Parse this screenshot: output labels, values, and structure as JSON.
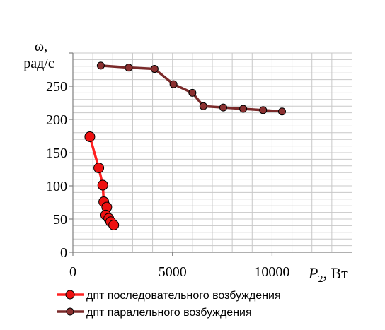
{
  "chart_data": {
    "type": "line",
    "title": "",
    "ylabel_line1": "ω,",
    "ylabel_line2": "рад/с",
    "xlabel_italic": "P",
    "xlabel_sub": "2",
    "xlabel_rest": ", Вт",
    "xlim": [
      0,
      14000
    ],
    "ylim": [
      0,
      300
    ],
    "x_major_ticks": [
      0,
      5000,
      10000
    ],
    "x_tick_labels": [
      "0",
      "5000",
      "10000"
    ],
    "y_major_ticks": [
      0,
      50,
      100,
      150,
      200,
      250
    ],
    "y_tick_labels": [
      "0",
      "50",
      "100",
      "150",
      "200",
      "250"
    ],
    "grid": true,
    "legend_position": "bottom",
    "series": [
      {
        "name": "дпт последовательного возбуждения",
        "color": "#ff2020",
        "marker_color": "#ee1111",
        "points": [
          {
            "x": 850,
            "y": 174
          },
          {
            "x": 1300,
            "y": 127
          },
          {
            "x": 1500,
            "y": 101
          },
          {
            "x": 1550,
            "y": 76
          },
          {
            "x": 1700,
            "y": 68
          },
          {
            "x": 1650,
            "y": 56
          },
          {
            "x": 1800,
            "y": 51
          },
          {
            "x": 1900,
            "y": 46
          },
          {
            "x": 2050,
            "y": 41
          }
        ]
      },
      {
        "name": "дпт паралельного возбуждения",
        "color": "#7a2a2a",
        "marker_color": "#8b3030",
        "points": [
          {
            "x": 1400,
            "y": 281
          },
          {
            "x": 2800,
            "y": 278
          },
          {
            "x": 4100,
            "y": 276
          },
          {
            "x": 5050,
            "y": 253
          },
          {
            "x": 6000,
            "y": 240
          },
          {
            "x": 6550,
            "y": 220
          },
          {
            "x": 7550,
            "y": 218
          },
          {
            "x": 8550,
            "y": 216
          },
          {
            "x": 9550,
            "y": 214
          },
          {
            "x": 10500,
            "y": 212
          }
        ]
      }
    ]
  }
}
